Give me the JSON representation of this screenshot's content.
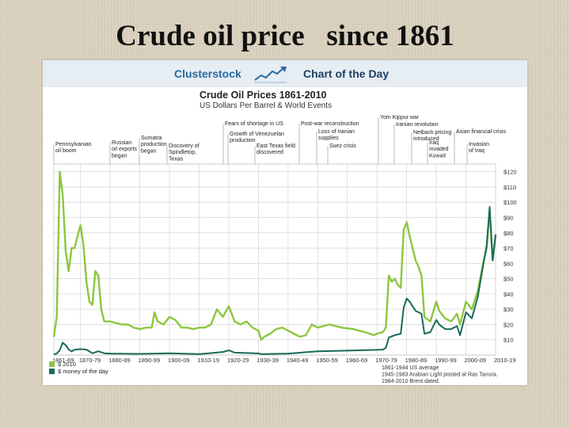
{
  "slide": {
    "title": "Crude oil price   since 1861"
  },
  "header": {
    "brand": "Clusterstock",
    "tagline": "Chart of the Day",
    "icon": "rising-chart-arrow-icon"
  },
  "colors": {
    "series2010": "#8dc63f",
    "seriesMoney": "#1a6a5a",
    "grid": "#d8d8d8",
    "brand": "#2a6aa0"
  },
  "chart_data": {
    "type": "line",
    "title": "Crude Oil Prices 1861-2010",
    "subtitle": "US Dollars Per Barrel & World Events",
    "xlim": [
      1861,
      2010
    ],
    "ylim": [
      0,
      125
    ],
    "grid": true,
    "legend_position": "bottom-left",
    "y_ticks": [
      {
        "value": 10,
        "label": "$10"
      },
      {
        "value": 20,
        "label": "$20"
      },
      {
        "value": 30,
        "label": "$30"
      },
      {
        "value": 40,
        "label": "$40"
      },
      {
        "value": 50,
        "label": "$50"
      },
      {
        "value": 60,
        "label": "$60"
      },
      {
        "value": 70,
        "label": "$70"
      },
      {
        "value": 80,
        "label": "$80"
      },
      {
        "value": 90,
        "label": "$90"
      },
      {
        "value": 100,
        "label": "$100"
      },
      {
        "value": 110,
        "label": "$110"
      },
      {
        "value": 120,
        "label": "$120"
      }
    ],
    "x_ticks": [
      {
        "value": 1861,
        "label": "1861-69"
      },
      {
        "value": 1870,
        "label": "1870-79"
      },
      {
        "value": 1880,
        "label": "1880-89"
      },
      {
        "value": 1890,
        "label": "1890-99"
      },
      {
        "value": 1900,
        "label": "1900-09"
      },
      {
        "value": 1910,
        "label": "1910-19"
      },
      {
        "value": 1920,
        "label": "1920-29"
      },
      {
        "value": 1930,
        "label": "1930-39"
      },
      {
        "value": 1940,
        "label": "1940-49"
      },
      {
        "value": 1950,
        "label": "1950-59"
      },
      {
        "value": 1960,
        "label": "1960-69"
      },
      {
        "value": 1970,
        "label": "1970-79"
      },
      {
        "value": 1980,
        "label": "1980-89"
      },
      {
        "value": 1990,
        "label": "1990-99"
      },
      {
        "value": 2000,
        "label": "2000-09"
      },
      {
        "value": 2010,
        "label": "2010-19"
      }
    ],
    "series": [
      {
        "name": "$ 2010",
        "x": [
          1861,
          1862,
          1863,
          1864,
          1865,
          1866,
          1867,
          1868,
          1869,
          1870,
          1871,
          1872,
          1873,
          1874,
          1875,
          1876,
          1877,
          1878,
          1879,
          1880,
          1882,
          1884,
          1886,
          1888,
          1890,
          1892,
          1894,
          1895,
          1896,
          1898,
          1900,
          1902,
          1904,
          1906,
          1908,
          1910,
          1912,
          1914,
          1916,
          1918,
          1920,
          1922,
          1924,
          1926,
          1928,
          1930,
          1931,
          1932,
          1934,
          1936,
          1938,
          1940,
          1942,
          1944,
          1946,
          1948,
          1950,
          1954,
          1958,
          1962,
          1966,
          1969,
          1970,
          1972,
          1973,
          1974,
          1975,
          1976,
          1977,
          1978,
          1979,
          1980,
          1981,
          1982,
          1983,
          1984,
          1985,
          1986,
          1988,
          1990,
          1991,
          1993,
          1995,
          1997,
          1998,
          2000,
          2002,
          2004,
          2006,
          2007,
          2008,
          2009,
          2010
        ],
        "values": [
          12,
          25,
          120,
          105,
          68,
          55,
          70,
          70,
          78,
          85,
          72,
          48,
          35,
          33,
          55,
          52,
          30,
          22,
          22,
          22,
          21,
          20,
          20,
          18,
          17,
          18,
          18,
          28,
          22,
          20,
          25,
          23,
          18,
          18,
          17,
          18,
          18,
          20,
          30,
          25,
          32,
          22,
          20,
          22,
          18,
          16,
          10,
          12,
          14,
          17,
          18,
          16,
          14,
          12,
          13,
          20,
          18,
          20,
          18,
          17,
          15,
          13,
          14,
          15,
          18,
          52,
          48,
          50,
          46,
          44,
          82,
          87,
          78,
          70,
          62,
          58,
          52,
          25,
          22,
          35,
          29,
          24,
          22,
          27,
          20,
          35,
          30,
          42,
          62,
          70,
          95,
          62,
          78
        ]
      },
      {
        "name": "$ money of the day",
        "x": [
          1861,
          1862,
          1863,
          1864,
          1865,
          1866,
          1867,
          1868,
          1870,
          1872,
          1874,
          1876,
          1878,
          1880,
          1890,
          1900,
          1910,
          1918,
          1920,
          1922,
          1930,
          1931,
          1940,
          1950,
          1960,
          1970,
          1972,
          1973,
          1974,
          1976,
          1978,
          1979,
          1980,
          1981,
          1982,
          1983,
          1985,
          1986,
          1988,
          1990,
          1991,
          1993,
          1995,
          1997,
          1998,
          2000,
          2002,
          2004,
          2006,
          2007,
          2008,
          2009,
          2010
        ],
        "values": [
          0.5,
          1.0,
          3.2,
          8.1,
          6.5,
          3.7,
          2.4,
          3.6,
          3.9,
          3.6,
          1.2,
          2.5,
          1.2,
          1.0,
          0.8,
          1.2,
          0.6,
          2.0,
          3.1,
          1.6,
          1.1,
          0.7,
          1.0,
          2.5,
          2.9,
          3.4,
          3.6,
          4.8,
          11.5,
          13,
          14,
          31,
          37,
          35,
          32,
          29,
          27,
          14,
          15,
          23,
          20,
          17,
          17,
          19,
          13,
          28,
          24,
          38,
          61,
          72,
          97,
          62,
          79
        ]
      }
    ],
    "annotations": [
      {
        "x": 1861,
        "lines": [
          "Pennsylvanian",
          "oil boom"
        ]
      },
      {
        "x": 1867,
        "lines": [
          "Russian",
          "oil exports",
          "began"
        ]
      },
      {
        "x": 1872,
        "lines": [
          "Sumatra",
          "production",
          "began"
        ]
      },
      {
        "x": 1875,
        "lines": [
          "Discovery of",
          "Spindletop,",
          "Texas"
        ]
      },
      {
        "x": 1910,
        "lines": [
          "Fears of shortage in US"
        ]
      },
      {
        "x": 1910,
        "lines": [
          "Growth of Venezuelan",
          "production"
        ]
      },
      {
        "x": 1914,
        "lines": [
          "East Texas field",
          "discovered"
        ]
      },
      {
        "x": 1918,
        "lines": [
          "Post-war reconstruction"
        ]
      },
      {
        "x": 1922,
        "lines": [
          "Loss of Iranian",
          "supplies"
        ]
      },
      {
        "x": 1924,
        "lines": [
          "Suez crisis"
        ]
      },
      {
        "x": 1943,
        "lines": [
          "Yom Kippur war"
        ]
      },
      {
        "x": 1945,
        "lines": [
          "Iranian revolution"
        ]
      },
      {
        "x": 1948,
        "lines": [
          "Netback pricing",
          "introduced"
        ]
      },
      {
        "x": 1950,
        "lines": [
          "Iraq",
          "invaded",
          "Kuwait"
        ]
      },
      {
        "x": 1955,
        "lines": [
          "Asian financial crisis"
        ]
      },
      {
        "x": 1958,
        "lines": [
          "Invasion",
          "of Iraq"
        ]
      }
    ],
    "legend": [
      {
        "name": "$ 2010",
        "color": "#8dc63f"
      },
      {
        "name": "$ money of the day",
        "color": "#1a6a5a"
      }
    ],
    "footnotes": [
      "1861-1944 US average",
      "1945-1983 Arabian Light posted at Ras Tanura.",
      "1984-2010 Brent dated."
    ]
  }
}
